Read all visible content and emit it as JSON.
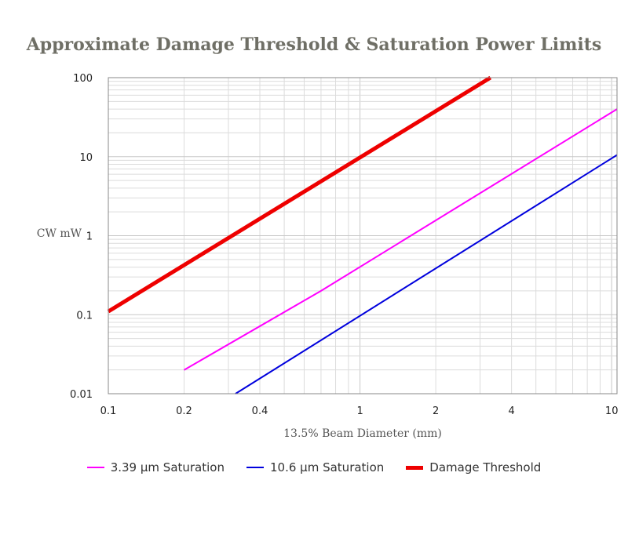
{
  "chart_data": {
    "type": "line",
    "title": "Approximate Damage Threshold & Saturation Power Limits",
    "xlabel": "13.5% Beam Diameter (mm)",
    "ylabel": "CW mW",
    "x_scale": "log",
    "y_scale": "log",
    "xlim": [
      0.1,
      10.5
    ],
    "ylim": [
      0.01,
      100
    ],
    "x_ticks": [
      0.1,
      0.2,
      0.4,
      1,
      2,
      4,
      10
    ],
    "x_tick_labels": [
      "0.1",
      "0.2",
      "0.4",
      "1",
      "2",
      "4",
      "10"
    ],
    "y_ticks": [
      0.01,
      0.1,
      1,
      10,
      100
    ],
    "y_tick_labels": [
      "0.01",
      "0.1",
      "1",
      "10",
      "100"
    ],
    "grid": true,
    "legend_position": "bottom",
    "series": [
      {
        "name": "3.39 µm Saturation",
        "color": "#ff00ff",
        "width": 2,
        "points": [
          [
            0.2,
            0.02
          ],
          [
            0.7,
            0.2
          ],
          [
            10.5,
            40
          ]
        ]
      },
      {
        "name": "10.6 µm Saturation",
        "color": "#0000dd",
        "width": 2,
        "points": [
          [
            0.32,
            0.01
          ],
          [
            10.5,
            10.5
          ]
        ]
      },
      {
        "name": "Damage Threshold",
        "color": "#ee0000",
        "width": 5,
        "points": [
          [
            0.1,
            0.11
          ],
          [
            3.3,
            100
          ]
        ]
      }
    ]
  }
}
